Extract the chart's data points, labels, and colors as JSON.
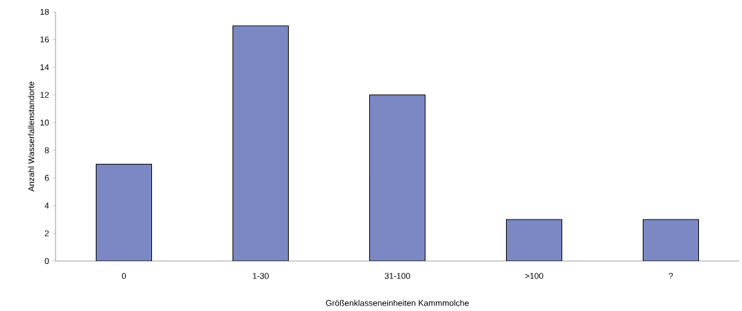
{
  "chart_data": {
    "type": "bar",
    "xlabel": "Größenklasseneinheiten Kammmolche",
    "ylabel": "Anzahl Wasserfallenstandorte",
    "categories": [
      "0",
      "1-30",
      "31-100",
      ">100",
      "?"
    ],
    "values": [
      7,
      17,
      12,
      3,
      3
    ],
    "color": "#7b88c4",
    "ylim": [
      0,
      18
    ],
    "yticks": [
      0,
      2,
      4,
      6,
      8,
      10,
      12,
      14,
      16,
      18
    ],
    "grid": false
  }
}
